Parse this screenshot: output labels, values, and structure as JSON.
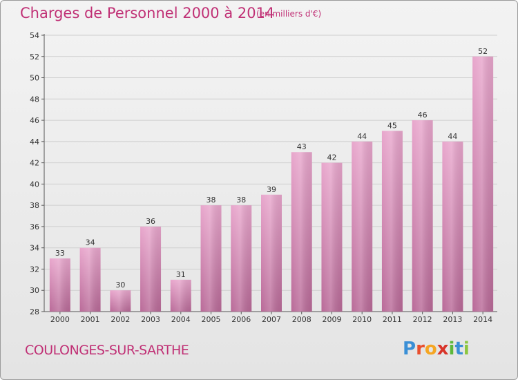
{
  "header": {
    "title": "Charges de Personnel 2000 à 2014",
    "subtitle": "(en milliers d'€)"
  },
  "footer": {
    "commune": "COULONGES-SUR-SARTHE",
    "logo_letters": [
      "P",
      "r",
      "o",
      "x",
      "i",
      "t",
      "i"
    ],
    "logo_colors": [
      "#3a8fd6",
      "#e94f2e",
      "#f5a623",
      "#d8342a",
      "#5cb83a",
      "#3a8fd6",
      "#8cc63f"
    ]
  },
  "colors": {
    "bar_top": "#e8a6cc",
    "bar_bottom": "#b96a98",
    "text": "#c03075",
    "axis": "#555555",
    "grid": "#cfcfcf"
  },
  "chart_data": {
    "type": "bar",
    "categories": [
      "2000",
      "2001",
      "2002",
      "2003",
      "2004",
      "2005",
      "2006",
      "2007",
      "2008",
      "2009",
      "2010",
      "2011",
      "2012",
      "2013",
      "2014"
    ],
    "values": [
      33,
      34,
      30,
      36,
      31,
      38,
      38,
      39,
      43,
      42,
      44,
      45,
      46,
      44,
      52
    ],
    "title": "Charges de Personnel 2000 à 2014",
    "subtitle": "(en milliers d'€)",
    "xlabel": "",
    "ylabel": "",
    "ylim": [
      28,
      54
    ],
    "yticks": [
      28,
      30,
      32,
      34,
      36,
      38,
      40,
      42,
      44,
      46,
      48,
      50,
      52,
      54
    ],
    "grid": true,
    "data_labels": true
  }
}
